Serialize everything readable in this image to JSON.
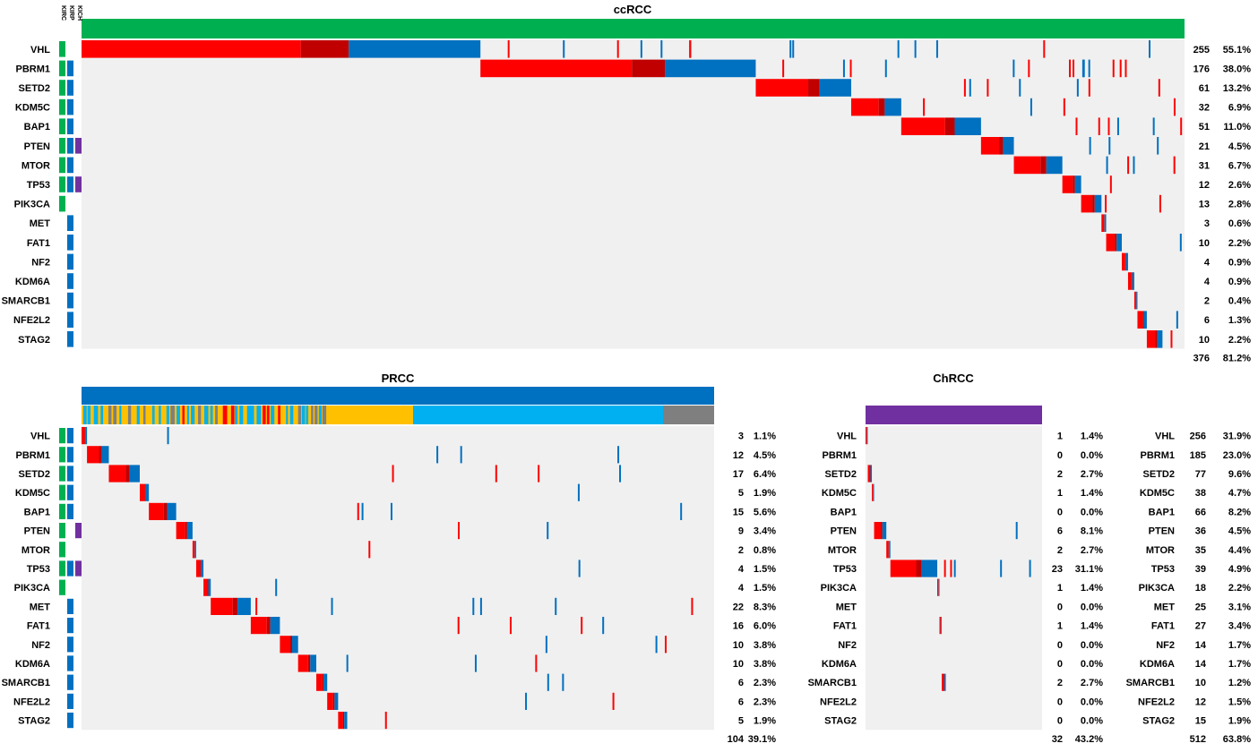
{
  "chart_data": [
    {
      "type": "heatmap",
      "title": "ccRCC",
      "subtype_column_labels": [
        "KIRC",
        "KIRP",
        "KICH"
      ],
      "genes": [
        "VHL",
        "PBRM1",
        "SETD2",
        "KDM5C",
        "BAP1",
        "PTEN",
        "MTOR",
        "TP53",
        "PIK3CA",
        "MET",
        "FAT1",
        "NF2",
        "KDM6A",
        "SMARCB1",
        "NFE2L2",
        "STAG2"
      ],
      "counts": [
        255,
        176,
        61,
        32,
        51,
        21,
        31,
        12,
        13,
        3,
        10,
        4,
        4,
        2,
        6,
        10
      ],
      "percents": [
        "55.1%",
        "38.0%",
        "13.2%",
        "6.9%",
        "11.0%",
        "4.5%",
        "6.7%",
        "2.6%",
        "2.8%",
        "0.6%",
        "2.2%",
        "0.9%",
        "0.9%",
        "0.4%",
        "1.3%",
        "2.2%"
      ],
      "total": {
        "count": "376",
        "percent": "81.2%"
      },
      "subtype_membership": [
        [
          "KIRC"
        ],
        [
          "KIRC",
          "KIRP"
        ],
        [
          "KIRC",
          "KIRP"
        ],
        [
          "KIRC",
          "KIRP"
        ],
        [
          "KIRC",
          "KIRP"
        ],
        [
          "KIRC",
          "KIRP",
          "KICH"
        ],
        [
          "KIRC",
          "KIRP"
        ],
        [
          "KIRC",
          "KIRP",
          "KICH"
        ],
        [
          "KIRC"
        ],
        [
          "KIRP"
        ],
        [
          "KIRP"
        ],
        [
          "KIRP"
        ],
        [
          "KIRP"
        ],
        [
          "KIRP"
        ],
        [
          "KIRP"
        ],
        [
          "KIRP"
        ]
      ]
    },
    {
      "type": "heatmap",
      "title": "PRCC",
      "genes": [
        "VHL",
        "PBRM1",
        "SETD2",
        "KDM5C",
        "BAP1",
        "PTEN",
        "MTOR",
        "TP53",
        "PIK3CA",
        "MET",
        "FAT1",
        "NF2",
        "KDM6A",
        "SMARCB1",
        "NFE2L2",
        "STAG2"
      ],
      "counts": [
        3,
        12,
        17,
        5,
        15,
        9,
        2,
        4,
        4,
        22,
        16,
        10,
        10,
        6,
        6,
        5
      ],
      "percents": [
        "1.1%",
        "4.5%",
        "6.4%",
        "1.9%",
        "5.6%",
        "3.4%",
        "0.8%",
        "1.5%",
        "1.5%",
        "8.3%",
        "6.0%",
        "3.8%",
        "3.8%",
        "2.3%",
        "2.3%",
        "1.9%"
      ],
      "total": {
        "count": "104",
        "percent": "39.1%"
      },
      "subtype_membership": [
        [
          "KIRC",
          "KIRP"
        ],
        [
          "KIRC",
          "KIRP"
        ],
        [
          "KIRC",
          "KIRP"
        ],
        [
          "KIRC",
          "KIRP"
        ],
        [
          "KIRC",
          "KIRP"
        ],
        [
          "KIRC",
          "KICH"
        ],
        [
          "KIRC"
        ],
        [
          "KIRC",
          "KIRP",
          "KICH"
        ],
        [
          "KIRC"
        ],
        [
          "KIRP"
        ],
        [
          "KIRP"
        ],
        [
          "KIRP"
        ],
        [
          "KIRP"
        ],
        [
          "KIRP"
        ],
        [
          "KIRP"
        ],
        [
          "KIRP"
        ]
      ]
    },
    {
      "type": "heatmap",
      "title": "ChRCC",
      "genes": [
        "VHL",
        "PBRM1",
        "SETD2",
        "KDM5C",
        "BAP1",
        "PTEN",
        "MTOR",
        "TP53",
        "PIK3CA",
        "MET",
        "FAT1",
        "NF2",
        "KDM6A",
        "SMARCB1",
        "NFE2L2",
        "STAG2"
      ],
      "counts": [
        1,
        0,
        2,
        1,
        0,
        6,
        2,
        23,
        1,
        0,
        1,
        0,
        0,
        2,
        0,
        0
      ],
      "percents": [
        "1.4%",
        "0.0%",
        "2.7%",
        "1.4%",
        "0.0%",
        "8.1%",
        "2.7%",
        "31.1%",
        "1.4%",
        "0.0%",
        "1.4%",
        "0.0%",
        "0.0%",
        "2.7%",
        "0.0%",
        "0.0%"
      ],
      "total": {
        "count": "32",
        "percent": "43.2%"
      }
    },
    {
      "type": "table",
      "genes": [
        "VHL",
        "PBRM1",
        "SETD2",
        "KDM5C",
        "BAP1",
        "PTEN",
        "MTOR",
        "TP53",
        "PIK3CA",
        "MET",
        "FAT1",
        "NF2",
        "KDM6A",
        "SMARCB1",
        "NFE2L2",
        "STAG2"
      ],
      "counts": [
        256,
        185,
        77,
        38,
        66,
        36,
        35,
        39,
        18,
        25,
        27,
        14,
        14,
        10,
        12,
        15
      ],
      "percents": [
        "31.9%",
        "23.0%",
        "9.6%",
        "4.7%",
        "8.2%",
        "4.5%",
        "4.4%",
        "4.9%",
        "2.2%",
        "3.1%",
        "3.4%",
        "1.7%",
        "1.7%",
        "1.2%",
        "1.5%",
        "1.9%"
      ],
      "total": {
        "count": "512",
        "percent": "63.8%"
      }
    }
  ],
  "colors": {
    "background_cell": "#f0f0f0",
    "mutation_red": "#ff0000",
    "mutation_darkred": "#c00000",
    "mutation_blue": "#0070c0",
    "kirc_green": "#00b050",
    "kirp_blue": "#0070c0",
    "kich_purple": "#7030a0",
    "prcc_yellow": "#ffc000",
    "prcc_lightblue": "#00b0f0",
    "prcc_gray": "#7f7f7f"
  }
}
